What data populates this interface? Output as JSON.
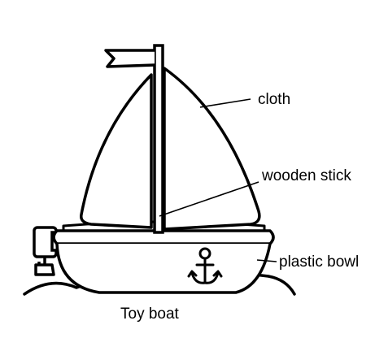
{
  "diagram": {
    "caption": "Toy boat",
    "labels": {
      "cloth": "cloth",
      "stick": "wooden stick",
      "bowl": "plastic bowl"
    },
    "icons": {
      "flag": "flag-icon",
      "anchor": "anchor-icon",
      "motor": "outboard-motor-icon"
    },
    "colors": {
      "line": "#000000",
      "fill": "#ffffff"
    }
  }
}
